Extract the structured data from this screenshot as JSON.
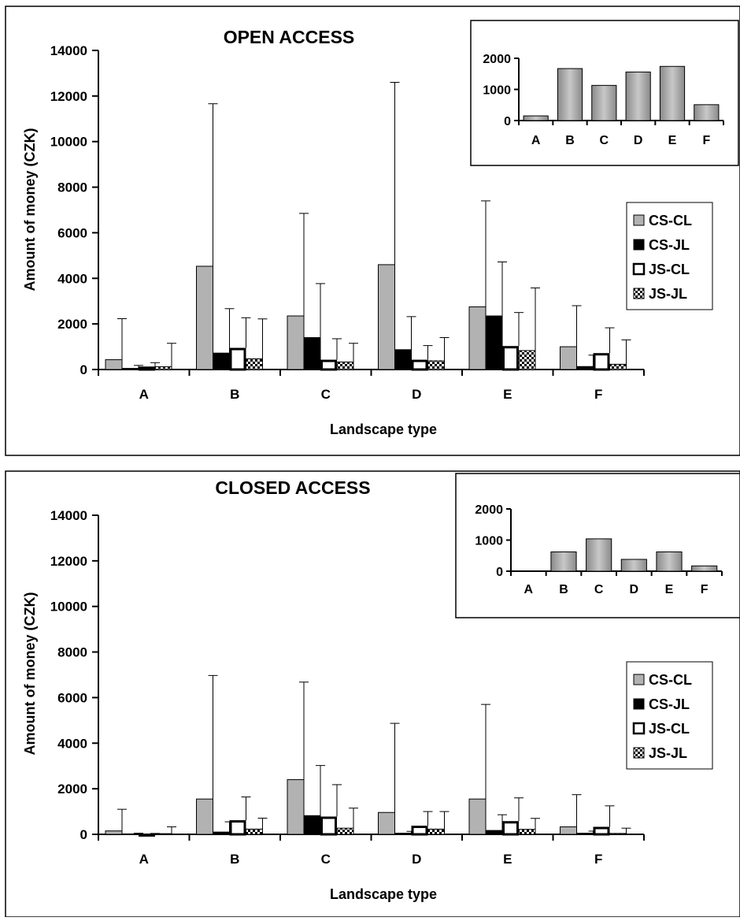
{
  "chart_data": [
    {
      "type": "bar",
      "title": "OPEN ACCESS",
      "xlabel": "Landscape type",
      "ylabel": "Amount of money (CZK)",
      "categories": [
        "A",
        "B",
        "C",
        "D",
        "E",
        "F"
      ],
      "ylim": [
        0,
        14000
      ],
      "yticks": [
        "0",
        "2000",
        "4000",
        "6000",
        "8000",
        "10000",
        "12000",
        "14000"
      ],
      "grid": false,
      "legend_position": "right",
      "series": [
        {
          "name": "CS-CL",
          "values": [
            430,
            4530,
            2350,
            4600,
            2750,
            1000
          ],
          "error": [
            1800,
            7130,
            4500,
            8000,
            4650,
            1800
          ]
        },
        {
          "name": "CS-JL",
          "values": [
            50,
            720,
            1400,
            870,
            2350,
            130
          ],
          "error": [
            130,
            1950,
            2370,
            1450,
            2370,
            500
          ]
        },
        {
          "name": "JS-CL",
          "values": [
            130,
            950,
            430,
            430,
            1030,
            720
          ],
          "error": [
            170,
            1320,
            920,
            620,
            1470,
            1110
          ]
        },
        {
          "name": "JS-JL",
          "values": [
            120,
            470,
            330,
            380,
            830,
            230
          ],
          "error": [
            1030,
            1750,
            820,
            1020,
            2750,
            1070
          ]
        }
      ],
      "inset": {
        "type": "bar",
        "categories": [
          "A",
          "B",
          "C",
          "D",
          "E",
          "F"
        ],
        "values": [
          150,
          1670,
          1130,
          1560,
          1740,
          510
        ],
        "ylim": [
          0,
          2000
        ],
        "yticks": [
          "0",
          "1000",
          "2000"
        ]
      }
    },
    {
      "type": "bar",
      "title": "CLOSED ACCESS",
      "xlabel": "Landscape type",
      "ylabel": "Amount of money (CZK)",
      "categories": [
        "A",
        "B",
        "C",
        "D",
        "E",
        "F"
      ],
      "ylim": [
        0,
        14000
      ],
      "yticks": [
        "0",
        "2000",
        "4000",
        "6000",
        "8000",
        "10000",
        "12000",
        "14000"
      ],
      "grid": false,
      "legend_position": "right",
      "series": [
        {
          "name": "CS-CL",
          "values": [
            150,
            1550,
            2400,
            960,
            1550,
            330
          ],
          "error": [
            950,
            5420,
            4280,
            3910,
            4150,
            1410
          ]
        },
        {
          "name": "CS-JL",
          "values": [
            20,
            100,
            820,
            50,
            170,
            50
          ],
          "error": [
            30,
            450,
            2200,
            80,
            690,
            90
          ]
        },
        {
          "name": "JS-CL",
          "values": [
            20,
            620,
            780,
            380,
            580,
            330
          ],
          "error": [
            20,
            1020,
            1400,
            620,
            1020,
            920
          ]
        },
        {
          "name": "JS-JL",
          "values": [
            30,
            230,
            270,
            230,
            220,
            40
          ],
          "error": [
            300,
            480,
            880,
            770,
            480,
            230
          ]
        }
      ],
      "inset": {
        "type": "bar",
        "categories": [
          "A",
          "B",
          "C",
          "D",
          "E",
          "F"
        ],
        "values": [
          10,
          620,
          1040,
          380,
          620,
          170
        ],
        "ylim": [
          0,
          2000
        ],
        "yticks": [
          "0",
          "1000",
          "2000"
        ]
      }
    }
  ]
}
